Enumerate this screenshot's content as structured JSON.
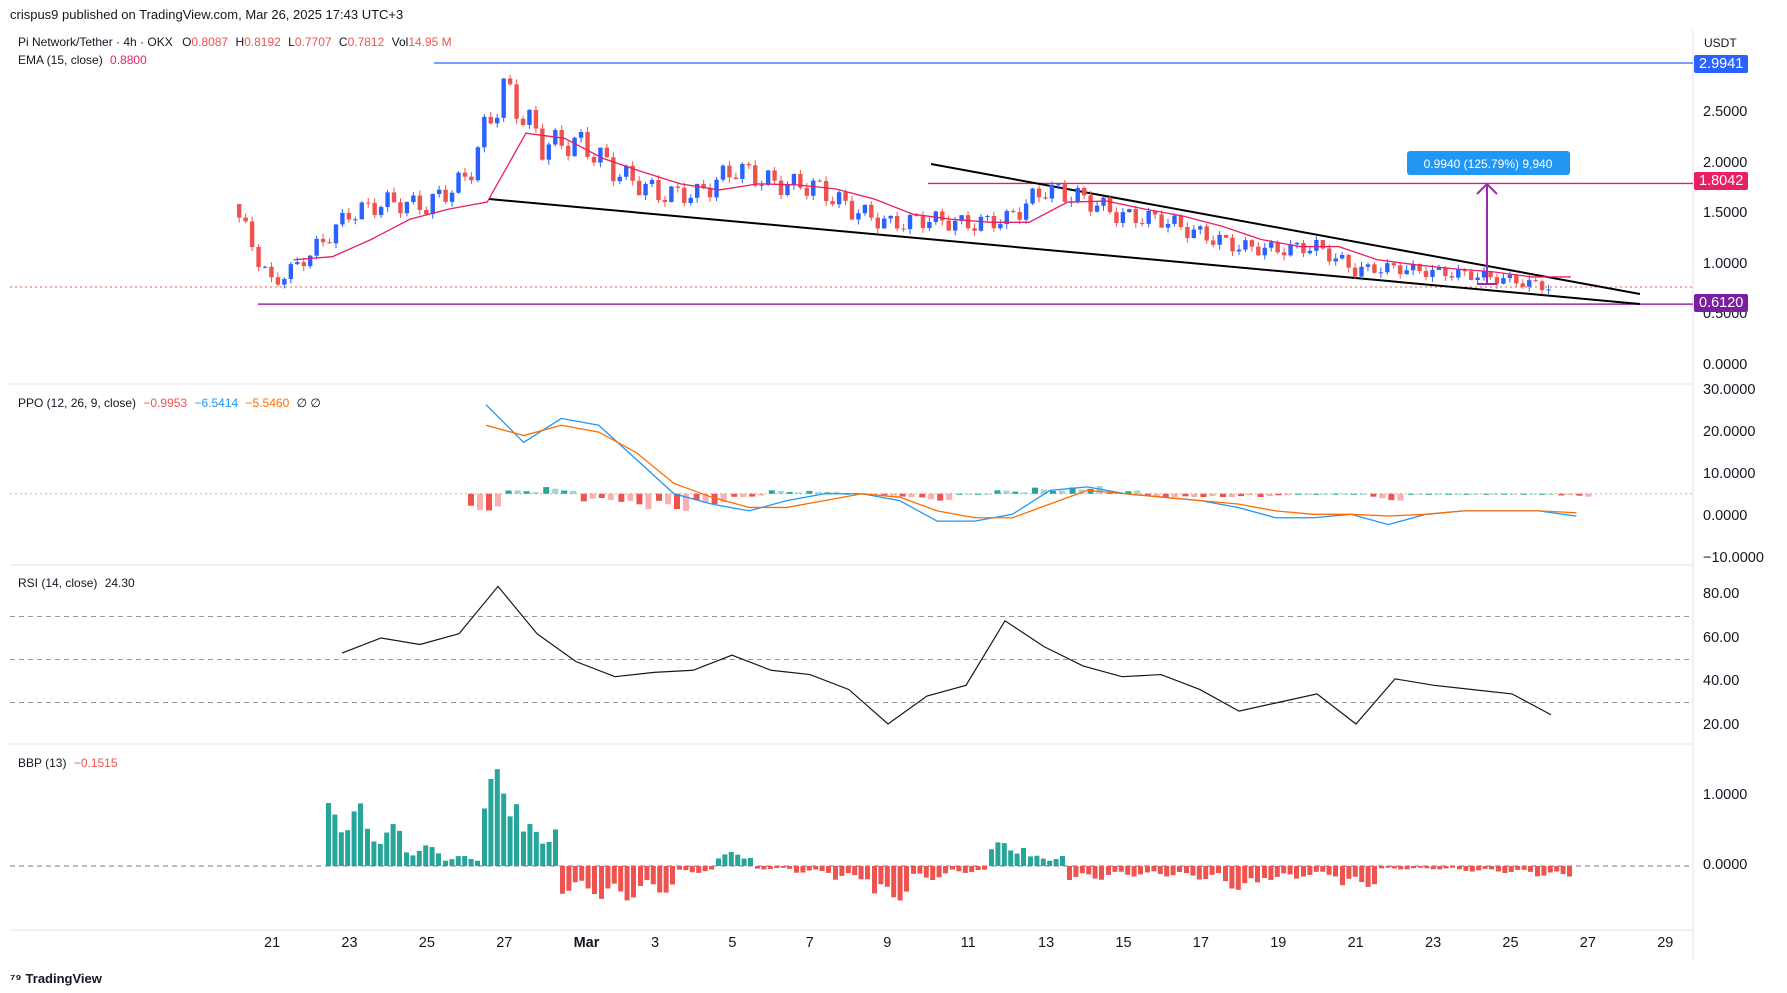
{
  "header": {
    "publish_text": "crispus9 published on TradingView.com, Mar 26, 2025 17:43 UTC+3"
  },
  "main_legend": {
    "symbol": "Pi Network/Tether · 4h · OKX",
    "o_label": "O",
    "o": "0.8087",
    "h_label": "H",
    "h": "0.8192",
    "l_label": "L",
    "l": "0.7707",
    "c_label": "C",
    "c": "0.7812",
    "vol_label": "Vol",
    "vol": "14.95 M",
    "ema_label": "EMA (15, close)",
    "ema": "0.8800"
  },
  "ppo_legend": {
    "label": "PPO (12, 26, 9, close)",
    "v1": "−0.9953",
    "v2": "−6.5414",
    "v3": "−5.5460",
    "flags": "∅  ∅"
  },
  "rsi_legend": {
    "label": "RSI (14, close)",
    "value": "24.30"
  },
  "bbp_legend": {
    "label": "BBP (13)",
    "value": "−0.1515"
  },
  "currency": "USDT",
  "measure_label": "0.9940 (125.79%) 9,940",
  "price_tags": {
    "high": "2.9941",
    "resistance": "1.8042",
    "support": "0.6120"
  },
  "price_axis": [
    "2.5000",
    "2.0000",
    "1.5000",
    "1.0000",
    "0.5000",
    "0.0000"
  ],
  "ppo_axis": [
    "30.0000",
    "20.0000",
    "10.0000",
    "0.0000",
    "−10.0000"
  ],
  "rsi_axis": [
    "80.00",
    "60.00",
    "40.00",
    "20.00"
  ],
  "bbp_axis": [
    "1.0000",
    "0.0000"
  ],
  "time_axis": [
    "21",
    "23",
    "25",
    "27",
    "Mar",
    "3",
    "5",
    "7",
    "9",
    "11",
    "13",
    "15",
    "17",
    "19",
    "21",
    "23",
    "25",
    "27",
    "29"
  ],
  "footer": {
    "brand": "TradingView"
  },
  "colors": {
    "up": "#26a69a",
    "down": "#ef5350",
    "blue": "#2962ff",
    "ema": "#e91e63",
    "purple": "#9c27b0",
    "ppo": "#2196f3",
    "signal": "#ff6d00"
  },
  "chart_data": [
    {
      "type": "candlestick",
      "title": "Pi Network/Tether · 4h · OKX",
      "ylabel": "USDT",
      "ylim": [
        0,
        3.0
      ],
      "x": [
        "Feb 20",
        "Feb 21",
        "Feb 22",
        "Feb 23",
        "Feb 24",
        "Feb 25",
        "Feb 26",
        "Feb 27",
        "Feb 28",
        "Mar 1",
        "Mar 2",
        "Mar 3",
        "Mar 4",
        "Mar 5",
        "Mar 6",
        "Mar 7",
        "Mar 8",
        "Mar 9",
        "Mar 10",
        "Mar 11",
        "Mar 12",
        "Mar 13",
        "Mar 14",
        "Mar 15",
        "Mar 16",
        "Mar 17",
        "Mar 18",
        "Mar 19",
        "Mar 20",
        "Mar 21",
        "Mar 22",
        "Mar 23",
        "Mar 24",
        "Mar 25",
        "Mar 26"
      ],
      "close": [
        1.6,
        0.8,
        1.1,
        1.5,
        1.62,
        1.58,
        1.85,
        2.75,
        2.2,
        2.2,
        1.9,
        1.7,
        1.7,
        1.95,
        1.8,
        1.78,
        1.55,
        1.4,
        1.45,
        1.4,
        1.45,
        1.75,
        1.65,
        1.48,
        1.45,
        1.3,
        1.18,
        1.15,
        1.18,
        0.95,
        0.97,
        0.93,
        0.9,
        0.85,
        0.78
      ],
      "ema": [
        null,
        1.05,
        1.08,
        1.25,
        1.45,
        1.55,
        1.62,
        2.3,
        2.25,
        2.05,
        1.92,
        1.8,
        1.74,
        1.8,
        1.79,
        1.75,
        1.65,
        1.5,
        1.45,
        1.42,
        1.42,
        1.62,
        1.63,
        1.55,
        1.48,
        1.38,
        1.25,
        1.18,
        1.18,
        1.05,
        1.0,
        0.96,
        0.93,
        0.88,
        0.88
      ],
      "horizontal_levels": [
        2.9941,
        1.8042,
        0.612
      ],
      "last": {
        "open": 0.8087,
        "high": 0.8192,
        "low": 0.7707,
        "close": 0.7812,
        "volume": "14.95 M"
      },
      "annotations": [
        "0.9940 (125.79%) 9,940"
      ]
    },
    {
      "type": "line",
      "title": "PPO (12, 26, 9, close)",
      "ylim": [
        -10,
        30
      ],
      "x": [
        "Feb 25",
        "Feb 26",
        "Feb 27",
        "Feb 28",
        "Mar 1",
        "Mar 2",
        "Mar 3",
        "Mar 4",
        "Mar 5",
        "Mar 6",
        "Mar 7",
        "Mar 8",
        "Mar 9",
        "Mar 10",
        "Mar 11",
        "Mar 12",
        "Mar 13",
        "Mar 14",
        "Mar 15",
        "Mar 16",
        "Mar 17",
        "Mar 18",
        "Mar 19",
        "Mar 20",
        "Mar 21",
        "Mar 22",
        "Mar 23",
        "Mar 24",
        "Mar 25",
        "Mar 26"
      ],
      "series": [
        {
          "name": "PPO",
          "values": [
            26,
            15,
            22,
            20,
            10,
            0,
            -3,
            -5,
            -2,
            0,
            0,
            -2,
            -8,
            -8,
            -6,
            1,
            2,
            0,
            -1,
            -2,
            -4,
            -7,
            -7,
            -6,
            -9,
            -6,
            -5,
            -5,
            -5,
            -6.5414
          ]
        },
        {
          "name": "Signal",
          "values": [
            20,
            17,
            20,
            18,
            12,
            3,
            -1,
            -4,
            -4,
            -2,
            0,
            -1,
            -5,
            -7,
            -7,
            -3,
            1,
            0,
            -1,
            -2,
            -3,
            -5,
            -6,
            -6,
            -6.5,
            -6,
            -5,
            -5,
            -5,
            -5.546
          ]
        },
        {
          "name": "Histogram",
          "values": [
            -5,
            1,
            2,
            -3,
            -5,
            -5,
            -3,
            -1,
            1,
            1,
            0,
            -1,
            -2,
            0,
            1,
            2,
            3,
            1,
            -1,
            -1,
            -1,
            -1,
            0,
            0,
            -2,
            0,
            0,
            0,
            0,
            -0.9953
          ]
        }
      ]
    },
    {
      "type": "line",
      "title": "RSI (14, close)",
      "ylim": [
        20,
        85
      ],
      "levels": [
        70,
        50,
        30
      ],
      "x": [
        "Feb 23",
        "Feb 24",
        "Feb 25",
        "Feb 26",
        "Feb 27",
        "Feb 28",
        "Mar 1",
        "Mar 2",
        "Mar 3",
        "Mar 4",
        "Mar 5",
        "Mar 6",
        "Mar 7",
        "Mar 8",
        "Mar 9",
        "Mar 10",
        "Mar 11",
        "Mar 12",
        "Mar 13",
        "Mar 14",
        "Mar 15",
        "Mar 16",
        "Mar 17",
        "Mar 18",
        "Mar 19",
        "Mar 20",
        "Mar 21",
        "Mar 22",
        "Mar 23",
        "Mar 24",
        "Mar 25",
        "Mar 26"
      ],
      "values": [
        53,
        60,
        57,
        62,
        84,
        62,
        49,
        42,
        44,
        45,
        52,
        45,
        43,
        36,
        20,
        33,
        38,
        68,
        56,
        47,
        42,
        43,
        36,
        26,
        30,
        34,
        20,
        41,
        38,
        36,
        34,
        24.3
      ]
    },
    {
      "type": "bar",
      "title": "BBP (13)",
      "ylim": [
        -0.6,
        1.5
      ],
      "x": [
        "Feb 23",
        "Feb 24",
        "Feb 25",
        "Feb 26",
        "Feb 27",
        "Feb 28",
        "Mar 1",
        "Mar 2",
        "Mar 3",
        "Mar 4",
        "Mar 5",
        "Mar 6",
        "Mar 7",
        "Mar 8",
        "Mar 9",
        "Mar 10",
        "Mar 11",
        "Mar 12",
        "Mar 13",
        "Mar 14",
        "Mar 15",
        "Mar 16",
        "Mar 17",
        "Mar 18",
        "Mar 19",
        "Mar 20",
        "Mar 21",
        "Mar 22",
        "Mar 23",
        "Mar 24",
        "Mar 25",
        "Mar 26"
      ],
      "values": [
        0.9,
        0.6,
        0.3,
        0.15,
        1.4,
        0.6,
        -0.4,
        -0.5,
        -0.4,
        -0.1,
        0.2,
        -0.05,
        -0.1,
        -0.2,
        -0.5,
        -0.2,
        -0.1,
        0.35,
        0.15,
        -0.2,
        -0.15,
        -0.15,
        -0.2,
        -0.35,
        -0.2,
        -0.15,
        -0.3,
        -0.05,
        -0.05,
        -0.08,
        -0.1,
        -0.1515
      ]
    }
  ]
}
